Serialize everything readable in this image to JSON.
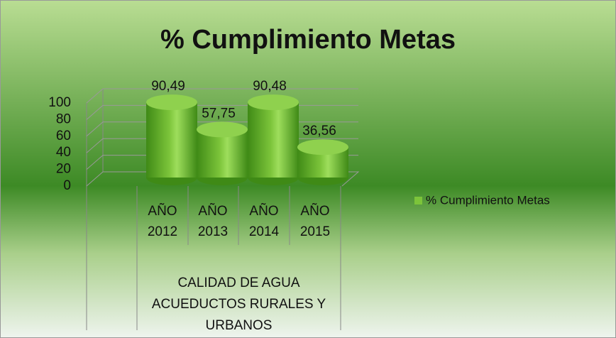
{
  "chart_data": {
    "type": "bar3d-cylinder",
    "title": "% Cumplimiento Metas",
    "categories": [
      "AÑO 2012",
      "AÑO 2013",
      "AÑO 2014",
      "AÑO 2015"
    ],
    "group_label": "CALIDAD DE AGUA ACUEDUCTOS RURALES Y URBANOS",
    "series": [
      {
        "name": "% Cumplimiento Metas",
        "color": "#7cc43a",
        "values": [
          90.49,
          57.75,
          90.48,
          36.56
        ],
        "value_labels": [
          "90,49",
          "57,75",
          "90,48",
          "36,56"
        ]
      }
    ],
    "ylim": [
      0,
      100
    ],
    "yticks": [
      0,
      20,
      40,
      60,
      80,
      100
    ],
    "grid": true,
    "legend": "right"
  }
}
